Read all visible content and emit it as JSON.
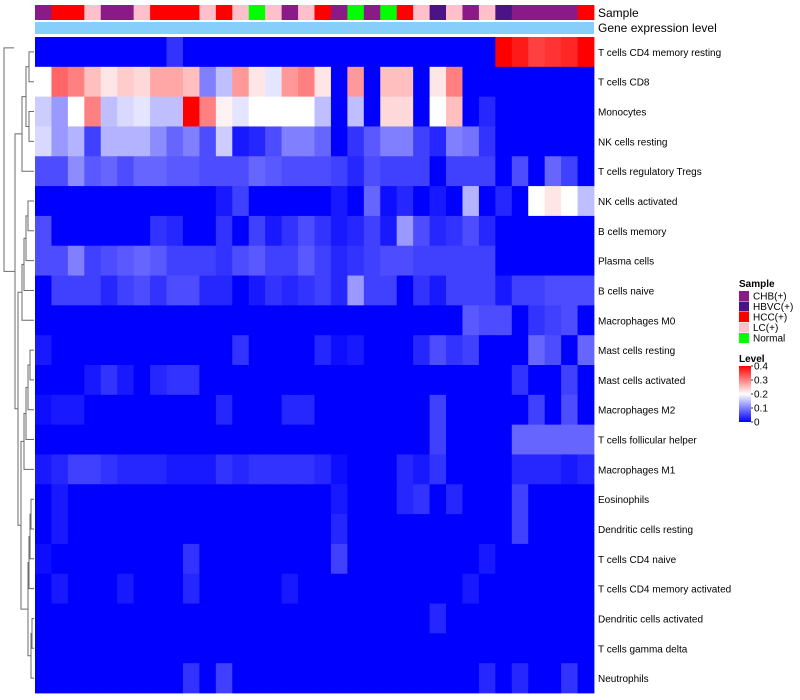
{
  "chart_data": {
    "type": "heatmap",
    "title": "",
    "annotation_labels": {
      "sample": "Sample",
      "expression": "Gene expression level"
    },
    "sample_groups": [
      "CHB(+)",
      "HCC(+)",
      "HCC(+)",
      "LC(+)",
      "CHB(+)",
      "CHB(+)",
      "LC(+)",
      "HCC(+)",
      "HCC(+)",
      "HCC(+)",
      "LC(+)",
      "HCC(+)",
      "LC(+)",
      "Normal",
      "LC(+)",
      "CHB(+)",
      "LC(+)",
      "HCC(+)",
      "CHB(+)",
      "Normal",
      "CHB(+)",
      "Normal",
      "HCC(+)",
      "LC(+)",
      "HBVC(+)",
      "LC(+)",
      "CHB(+)",
      "LC(+)",
      "HBVC(+)",
      "CHB(+)",
      "CHB(+)",
      "CHB(+)",
      "CHB(+)",
      "HCC(+)"
    ],
    "rows": [
      "T cells CD4 memory resting",
      "T cells CD8",
      "Monocytes",
      "NK cells resting",
      "T cells regulatory  Tregs",
      "NK cells activated",
      "B cells memory",
      "Plasma cells",
      "B cells naive",
      "Macrophages M0",
      "Mast cells resting",
      "Mast cells activated",
      "Macrophages M2",
      "T cells follicular helper",
      "Macrophages M1",
      "Eosinophils",
      "Dendritic cells resting",
      "T cells CD4 naive",
      "T cells CD4 memory activated",
      "Dendritic cells activated",
      "T cells gamma delta",
      "Neutrophils"
    ],
    "values": [
      [
        0,
        0,
        0,
        0,
        0,
        0,
        0,
        0,
        0.04,
        0,
        0,
        0,
        0,
        0,
        0,
        0,
        0,
        0,
        0,
        0,
        0,
        0,
        0,
        0,
        0,
        0,
        0,
        0,
        0.4,
        0.38,
        0.35,
        0.36,
        0.37,
        0.4
      ],
      [
        0.2,
        0.32,
        0.3,
        0.25,
        0.22,
        0.24,
        0.23,
        0.27,
        0.27,
        0.25,
        0.1,
        0.15,
        0.28,
        0.22,
        0.18,
        0.28,
        0.3,
        0.22,
        0,
        0.28,
        0,
        0.25,
        0.25,
        0,
        0.22,
        0.3,
        0,
        0,
        0,
        0,
        0,
        0,
        0,
        0
      ],
      [
        0.16,
        0.12,
        0.2,
        0.3,
        0.15,
        0.17,
        0.18,
        0.15,
        0.15,
        0.4,
        0.3,
        0.21,
        0.18,
        0.2,
        0.2,
        0.2,
        0.2,
        0.15,
        0,
        0.15,
        0,
        0.23,
        0.23,
        0,
        0.2,
        0.25,
        0,
        0.03,
        0,
        0,
        0,
        0,
        0,
        0
      ],
      [
        0.17,
        0.12,
        0.14,
        0.05,
        0.14,
        0.14,
        0.14,
        0.11,
        0.08,
        0.1,
        0.06,
        0.16,
        0.02,
        0.03,
        0.06,
        0.1,
        0.1,
        0.08,
        0,
        0.04,
        0.07,
        0.1,
        0.1,
        0.05,
        0.03,
        0.1,
        0.09,
        0.04,
        0,
        0,
        0,
        0,
        0,
        0
      ],
      [
        0.06,
        0.06,
        0.11,
        0.07,
        0.08,
        0.06,
        0.08,
        0.08,
        0.07,
        0.07,
        0.06,
        0.06,
        0.06,
        0.08,
        0.07,
        0.06,
        0.06,
        0.06,
        0.05,
        0.03,
        0.06,
        0.05,
        0.05,
        0.05,
        0,
        0.05,
        0.05,
        0.05,
        0,
        0.06,
        0,
        0.08,
        0.05,
        0
      ],
      [
        0,
        0,
        0,
        0,
        0,
        0,
        0,
        0,
        0,
        0,
        0,
        0.02,
        0.05,
        0,
        0,
        0,
        0,
        0,
        0.02,
        0,
        0.08,
        0.01,
        0.03,
        0,
        0.02,
        0,
        0.14,
        0,
        0.03,
        0,
        0.2,
        0.22,
        0.2,
        0.15
      ],
      [
        0.06,
        0,
        0,
        0,
        0,
        0,
        0,
        0.04,
        0.03,
        0,
        0,
        0.04,
        0,
        0.05,
        0.02,
        0.04,
        0.06,
        0.04,
        0.02,
        0.03,
        0.05,
        0.02,
        0.12,
        0.06,
        0.03,
        0.04,
        0.06,
        0.03,
        0,
        0,
        0,
        0,
        0,
        0
      ],
      [
        0.06,
        0.06,
        0.1,
        0.05,
        0.06,
        0.07,
        0.08,
        0.07,
        0.05,
        0.05,
        0.05,
        0.04,
        0.06,
        0.07,
        0.05,
        0.05,
        0.07,
        0.05,
        0.03,
        0.04,
        0.05,
        0.06,
        0.06,
        0.05,
        0.05,
        0.05,
        0.05,
        0.05,
        0,
        0,
        0,
        0,
        0,
        0
      ],
      [
        0,
        0.05,
        0.05,
        0.05,
        0.03,
        0.05,
        0.06,
        0.04,
        0.06,
        0.06,
        0.03,
        0.03,
        0,
        0.02,
        0.04,
        0.03,
        0.04,
        0.05,
        0.03,
        0.12,
        0.05,
        0.05,
        0,
        0.04,
        0.02,
        0.05,
        0.05,
        0.05,
        0.02,
        0.05,
        0.05,
        0.06,
        0.06,
        0.06
      ],
      [
        0,
        0,
        0,
        0,
        0,
        0,
        0,
        0,
        0,
        0,
        0,
        0,
        0,
        0,
        0,
        0,
        0,
        0,
        0,
        0,
        0,
        0,
        0,
        0,
        0,
        0,
        0.07,
        0.06,
        0.06,
        0,
        0.04,
        0.05,
        0.06,
        0
      ],
      [
        0.02,
        0,
        0,
        0,
        0,
        0,
        0,
        0,
        0,
        0,
        0,
        0,
        0.04,
        0,
        0,
        0,
        0,
        0.03,
        0.01,
        0.02,
        0,
        0,
        0,
        0.03,
        0.06,
        0.04,
        0.05,
        0,
        0,
        0,
        0.08,
        0.06,
        0,
        0.08
      ],
      [
        0,
        0,
        0,
        0.02,
        0.04,
        0.02,
        0,
        0.03,
        0.04,
        0.04,
        0,
        0,
        0,
        0,
        0,
        0,
        0,
        0,
        0,
        0,
        0,
        0,
        0,
        0,
        0,
        0,
        0,
        0,
        0,
        0.04,
        0,
        0,
        0.05,
        0
      ],
      [
        0.01,
        0.02,
        0.02,
        0,
        0,
        0,
        0,
        0,
        0,
        0,
        0,
        0.03,
        0,
        0,
        0,
        0.03,
        0.03,
        0,
        0,
        0,
        0,
        0,
        0,
        0,
        0.05,
        0,
        0,
        0,
        0,
        0,
        0.05,
        0,
        0.06,
        0
      ],
      [
        0,
        0,
        0,
        0,
        0,
        0,
        0,
        0,
        0,
        0,
        0,
        0,
        0,
        0,
        0,
        0,
        0,
        0,
        0,
        0,
        0,
        0,
        0,
        0,
        0.05,
        0,
        0,
        0,
        0,
        0.08,
        0.08,
        0.08,
        0.08,
        0.08
      ],
      [
        0.02,
        0.03,
        0.05,
        0.05,
        0.04,
        0.03,
        0.03,
        0.03,
        0.02,
        0.02,
        0.02,
        0.04,
        0.03,
        0.04,
        0.04,
        0.04,
        0.04,
        0.03,
        0.01,
        0,
        0,
        0,
        0.03,
        0.02,
        0.04,
        0,
        0,
        0,
        0,
        0.03,
        0.03,
        0.03,
        0.02,
        0.03
      ],
      [
        0,
        0.02,
        0,
        0,
        0,
        0,
        0,
        0,
        0,
        0,
        0,
        0,
        0,
        0,
        0,
        0,
        0,
        0,
        0.02,
        0,
        0,
        0,
        0.03,
        0.04,
        0,
        0.03,
        0,
        0,
        0,
        0.05,
        0,
        0,
        0,
        0
      ],
      [
        0,
        0.02,
        0,
        0,
        0,
        0,
        0,
        0,
        0,
        0,
        0,
        0,
        0,
        0,
        0,
        0,
        0,
        0,
        0.03,
        0,
        0,
        0,
        0,
        0,
        0,
        0,
        0,
        0,
        0,
        0.05,
        0,
        0,
        0,
        0
      ],
      [
        0.01,
        0,
        0,
        0,
        0,
        0,
        0,
        0,
        0,
        0.04,
        0,
        0,
        0,
        0,
        0,
        0,
        0,
        0,
        0.05,
        0,
        0,
        0,
        0,
        0,
        0,
        0,
        0,
        0.02,
        0,
        0,
        0,
        0,
        0,
        0
      ],
      [
        0,
        0.02,
        0,
        0,
        0,
        0.02,
        0,
        0,
        0,
        0.03,
        0,
        0,
        0,
        0,
        0,
        0.02,
        0,
        0,
        0,
        0,
        0,
        0,
        0,
        0,
        0,
        0,
        0.02,
        0,
        0,
        0,
        0,
        0,
        0,
        0
      ],
      [
        0,
        0,
        0,
        0,
        0,
        0,
        0,
        0,
        0,
        0,
        0,
        0,
        0,
        0,
        0,
        0,
        0,
        0,
        0,
        0,
        0,
        0,
        0,
        0,
        0.03,
        0,
        0,
        0,
        0,
        0,
        0,
        0,
        0,
        0
      ],
      [
        0,
        0,
        0,
        0,
        0,
        0,
        0,
        0,
        0,
        0,
        0,
        0,
        0,
        0,
        0,
        0,
        0,
        0,
        0,
        0,
        0,
        0,
        0,
        0,
        0,
        0,
        0,
        0,
        0,
        0,
        0,
        0,
        0,
        0
      ],
      [
        0,
        0,
        0,
        0,
        0,
        0,
        0,
        0,
        0,
        0.04,
        0,
        0.05,
        0,
        0,
        0,
        0,
        0,
        0,
        0,
        0,
        0,
        0,
        0,
        0,
        0,
        0,
        0,
        0.03,
        0,
        0.03,
        0,
        0,
        0.04,
        0
      ]
    ],
    "color_scale": {
      "low": "#0000ff",
      "mid": "#ffffff",
      "high": "#ff0000",
      "domain": [
        0,
        0.4
      ],
      "mid_value": 0.2
    },
    "legend": {
      "placement": "right",
      "sample_title": "Sample",
      "groups": [
        {
          "label": "CHB(+)",
          "color": "#8b1a89"
        },
        {
          "label": "HBVC(+)",
          "color": "#4a1486"
        },
        {
          "label": "HCC(+)",
          "color": "#ff0000"
        },
        {
          "label": "LC(+)",
          "color": "#ffc0cb"
        },
        {
          "label": "Normal",
          "color": "#00ff00"
        }
      ],
      "level_title": "Level",
      "level_ticks": [
        "0.4",
        "0.3",
        "0.2",
        "0.1",
        "0"
      ]
    },
    "expression_bar_color": "#87cefa",
    "dendrogram": "rows clustered"
  }
}
